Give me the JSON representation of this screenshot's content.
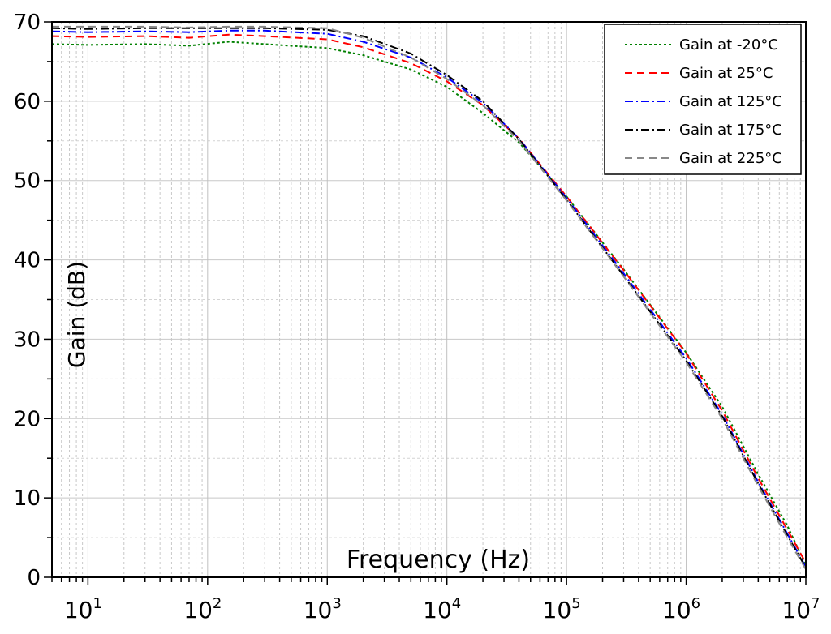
{
  "chart_data": {
    "type": "line",
    "xscale": "log",
    "xlabel": "Frequency (Hz)",
    "ylabel": "Gain (dB)",
    "xlim": [
      5,
      10000000
    ],
    "ylim": [
      0,
      70
    ],
    "grid": true,
    "legend_position": "top-right",
    "y_ticks": [
      0,
      10,
      20,
      30,
      40,
      50,
      60,
      70
    ],
    "x_ticks": [
      {
        "value": 10,
        "base": "10",
        "exp": "1"
      },
      {
        "value": 100,
        "base": "10",
        "exp": "2"
      },
      {
        "value": 1000,
        "base": "10",
        "exp": "3"
      },
      {
        "value": 10000,
        "base": "10",
        "exp": "4"
      },
      {
        "value": 100000,
        "base": "10",
        "exp": "5"
      },
      {
        "value": 1000000,
        "base": "10",
        "exp": "6"
      },
      {
        "value": 10000000,
        "base": "10",
        "exp": "7"
      }
    ],
    "series": [
      {
        "name": "Gain at -20°C",
        "color": "#008000",
        "dash": "3,3",
        "x": [
          5,
          10,
          30,
          70,
          150,
          300,
          1000,
          2000,
          5000,
          10000,
          20000,
          40000,
          100000,
          300000,
          1000000,
          2000000,
          4000000,
          7000000,
          10000000
        ],
        "y": [
          67.2,
          67.1,
          67.2,
          67.0,
          67.5,
          67.2,
          66.7,
          65.8,
          64.0,
          61.8,
          58.5,
          54.8,
          48.0,
          38.8,
          28.3,
          21.5,
          13.0,
          6.5,
          1.5
        ]
      },
      {
        "name": "Gain at 25°C",
        "color": "#ff0000",
        "dash": "9,6",
        "x": [
          5,
          10,
          30,
          70,
          150,
          300,
          1000,
          2000,
          5000,
          10000,
          20000,
          40000,
          100000,
          300000,
          1000000,
          2000000,
          4000000,
          7000000,
          10000000
        ],
        "y": [
          68.2,
          68.1,
          68.2,
          68.0,
          68.4,
          68.2,
          67.8,
          66.8,
          64.8,
          62.5,
          59.5,
          55.3,
          48.0,
          38.7,
          28.2,
          21.0,
          12.5,
          6.0,
          1.8
        ]
      },
      {
        "name": "Gain at 125°C",
        "color": "#0000ff",
        "dash": "10,4,2,4",
        "x": [
          5,
          10,
          30,
          70,
          150,
          300,
          1000,
          2000,
          5000,
          10000,
          20000,
          40000,
          100000,
          300000,
          1000000,
          2000000,
          4000000,
          7000000,
          10000000
        ],
        "y": [
          68.8,
          68.7,
          68.8,
          68.7,
          68.9,
          68.9,
          68.5,
          67.5,
          65.5,
          63.0,
          59.8,
          55.3,
          47.8,
          38.3,
          27.6,
          20.5,
          12.0,
          5.5,
          1.3
        ]
      },
      {
        "name": "Gain at 175°C",
        "color": "#000000",
        "dash": "10,4,2,4",
        "x": [
          5,
          10,
          30,
          70,
          150,
          300,
          1000,
          2000,
          5000,
          10000,
          20000,
          40000,
          100000,
          300000,
          1000000,
          2000000,
          4000000,
          7000000,
          10000000
        ],
        "y": [
          69.2,
          69.1,
          69.2,
          69.2,
          69.2,
          69.2,
          69.0,
          68.2,
          66.0,
          63.3,
          60.0,
          55.2,
          47.6,
          38.0,
          27.3,
          20.3,
          11.8,
          5.3,
          1.2
        ]
      },
      {
        "name": "Gain at 225°C",
        "color": "#888888",
        "dash": "9,6",
        "x": [
          5,
          10,
          30,
          70,
          150,
          300,
          1000,
          2000,
          5000,
          10000,
          20000,
          40000,
          100000,
          300000,
          1000000,
          2000000,
          4000000,
          7000000,
          10000000
        ],
        "y": [
          69.4,
          69.4,
          69.4,
          69.3,
          69.4,
          69.4,
          69.2,
          68.0,
          65.5,
          62.8,
          59.5,
          55.0,
          47.5,
          37.9,
          27.1,
          20.0,
          11.5,
          5.0,
          1.0
        ]
      }
    ]
  }
}
